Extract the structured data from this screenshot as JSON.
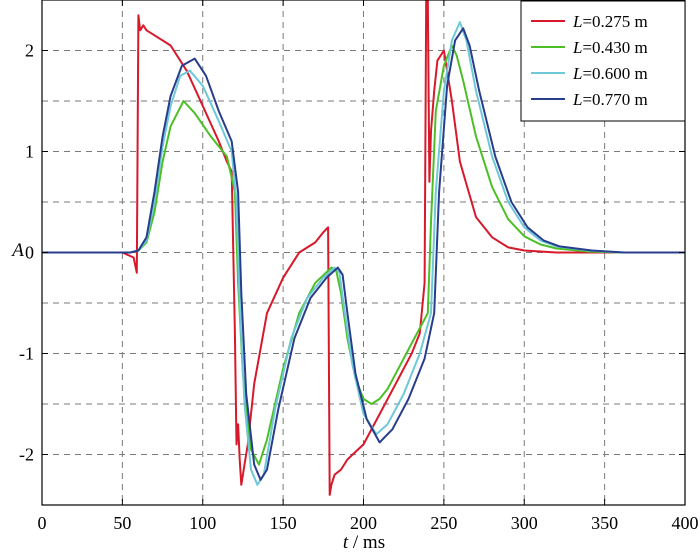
{
  "chart_data": {
    "type": "line",
    "xlabel": "t / ms",
    "ylabel": "A",
    "xlim": [
      0,
      400
    ],
    "ylim": [
      -2.5,
      2.5
    ],
    "xticks": [
      0,
      50,
      100,
      150,
      200,
      250,
      300,
      350,
      400
    ],
    "yticks": [
      -2,
      -1,
      0,
      1,
      2
    ],
    "grid": true,
    "legend_position": "top-right",
    "series": [
      {
        "name": "L=0.275 m",
        "label_var": "L",
        "label_val": "=0.275 m",
        "color": "#d7192b",
        "x": [
          0,
          50,
          57,
          59,
          60,
          61,
          63,
          65,
          70,
          80,
          90,
          100,
          110,
          115,
          118,
          120,
          121,
          122,
          123,
          124,
          126,
          128,
          132,
          140,
          150,
          160,
          170,
          175,
          178,
          179,
          180,
          182,
          186,
          190,
          200,
          210,
          220,
          230,
          235,
          238,
          239,
          240,
          241,
          242,
          244,
          246,
          250,
          255,
          260,
          270,
          280,
          290,
          300,
          320,
          340,
          360,
          380,
          400
        ],
        "y": [
          0,
          0,
          -0.05,
          -0.2,
          2.35,
          2.2,
          2.25,
          2.2,
          2.15,
          2.05,
          1.8,
          1.45,
          1.1,
          0.9,
          0.8,
          -0.8,
          -1.9,
          -1.7,
          -2.05,
          -2.3,
          -2.1,
          -1.9,
          -1.3,
          -0.6,
          -0.25,
          0,
          0.1,
          0.2,
          0.25,
          -2.4,
          -2.3,
          -2.2,
          -2.15,
          -2.05,
          -1.9,
          -1.6,
          -1.3,
          -1.0,
          -0.8,
          -0.3,
          2.5,
          2.5,
          0.7,
          1.2,
          1.6,
          1.9,
          2.0,
          1.5,
          0.9,
          0.35,
          0.15,
          0.05,
          0.02,
          0,
          0,
          0,
          0,
          0
        ]
      },
      {
        "name": "L=0.430 m",
        "label_var": "L",
        "label_val": "=0.430 m",
        "color": "#4dbf26",
        "x": [
          0,
          55,
          60,
          65,
          70,
          75,
          80,
          88,
          95,
          105,
          115,
          120,
          122,
          125,
          130,
          135,
          140,
          150,
          160,
          170,
          180,
          183,
          186,
          190,
          195,
          200,
          205,
          210,
          215,
          220,
          230,
          240,
          242,
          245,
          250,
          255,
          258,
          262,
          270,
          280,
          290,
          300,
          310,
          320,
          340,
          360,
          400
        ],
        "y": [
          0,
          0,
          0.02,
          0.1,
          0.4,
          0.9,
          1.25,
          1.5,
          1.38,
          1.15,
          0.95,
          0.6,
          -0.3,
          -1.2,
          -1.95,
          -2.1,
          -1.85,
          -1.15,
          -0.6,
          -0.3,
          -0.15,
          -0.18,
          -0.4,
          -0.85,
          -1.25,
          -1.45,
          -1.5,
          -1.45,
          -1.35,
          -1.2,
          -0.9,
          -0.6,
          0.3,
          1.4,
          1.85,
          2.05,
          1.95,
          1.7,
          1.15,
          0.65,
          0.33,
          0.16,
          0.08,
          0.04,
          0.01,
          0,
          0
        ]
      },
      {
        "name": "L=0.600 m",
        "label_var": "L",
        "label_val": "=0.600 m",
        "color": "#6ec8d8",
        "x": [
          0,
          55,
          60,
          65,
          70,
          75,
          80,
          86,
          92,
          100,
          110,
          118,
          121,
          123,
          126,
          130,
          134,
          138,
          145,
          155,
          165,
          175,
          182,
          185,
          188,
          193,
          200,
          208,
          215,
          225,
          235,
          242,
          245,
          250,
          255,
          260,
          264,
          270,
          280,
          290,
          300,
          310,
          320,
          340,
          360,
          400
        ],
        "y": [
          0,
          0,
          0.02,
          0.12,
          0.5,
          1.05,
          1.45,
          1.75,
          1.8,
          1.65,
          1.3,
          1.0,
          0.5,
          -0.5,
          -1.5,
          -2.15,
          -2.3,
          -2.2,
          -1.55,
          -0.85,
          -0.45,
          -0.25,
          -0.15,
          -0.2,
          -0.55,
          -1.1,
          -1.6,
          -1.8,
          -1.7,
          -1.4,
          -1.0,
          -0.6,
          0.6,
          1.6,
          2.1,
          2.28,
          2.1,
          1.6,
          0.95,
          0.5,
          0.25,
          0.12,
          0.06,
          0.02,
          0,
          0
        ]
      },
      {
        "name": "L=0.770 m",
        "label_var": "L",
        "label_val": "=0.770 m",
        "color": "#283d8c",
        "x": [
          0,
          55,
          60,
          65,
          70,
          75,
          80,
          87,
          95,
          102,
          110,
          118,
          122,
          124,
          127,
          132,
          136,
          140,
          147,
          157,
          167,
          177,
          184,
          187,
          190,
          195,
          202,
          210,
          218,
          228,
          238,
          244,
          247,
          252,
          257,
          262,
          266,
          272,
          282,
          292,
          302,
          312,
          322,
          342,
          362,
          400
        ],
        "y": [
          0,
          0,
          0.02,
          0.15,
          0.6,
          1.15,
          1.55,
          1.85,
          1.92,
          1.75,
          1.4,
          1.1,
          0.6,
          -0.4,
          -1.4,
          -2.1,
          -2.25,
          -2.15,
          -1.55,
          -0.85,
          -0.45,
          -0.25,
          -0.15,
          -0.22,
          -0.6,
          -1.2,
          -1.65,
          -1.88,
          -1.75,
          -1.45,
          -1.05,
          -0.6,
          0.6,
          1.65,
          2.1,
          2.22,
          2.05,
          1.6,
          0.95,
          0.5,
          0.25,
          0.12,
          0.06,
          0.02,
          0,
          0
        ]
      }
    ]
  }
}
